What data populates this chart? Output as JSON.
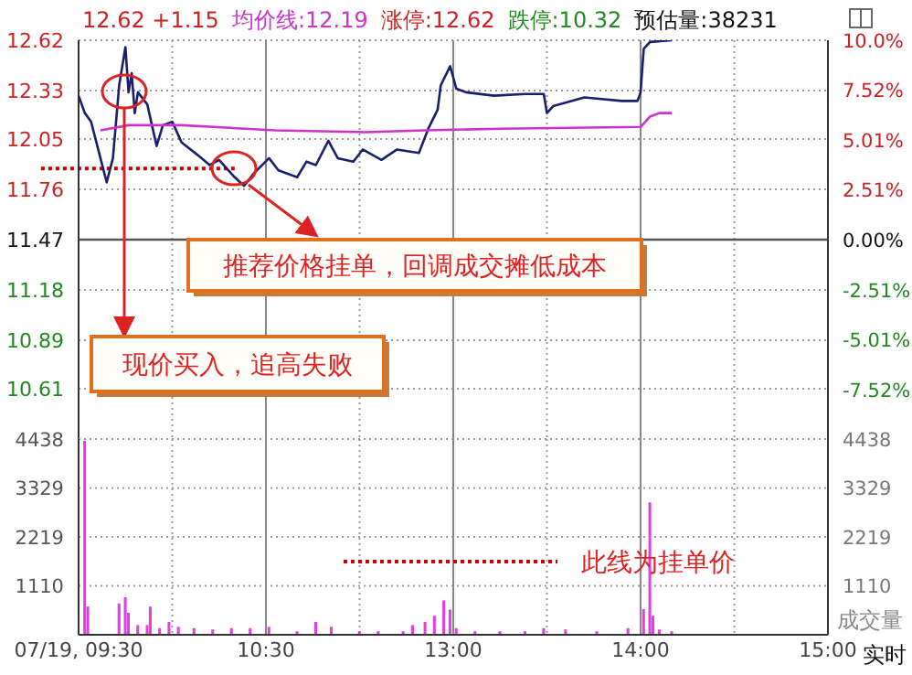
{
  "chart_data": [
    {
      "type": "line",
      "annotations": [
        "12.62 +1.15",
        "均价线:12.19",
        "涨停:12.62",
        "跌停:10.32",
        "预估量:38231",
        "现价买入，追高失败",
        "推荐价格挂单，回调成交摊低成本"
      ],
      "categories": [
        null,
        null,
        null,
        null,
        null,
        null,
        null,
        null,
        null,
        null,
        null,
        null,
        null,
        null,
        null,
        null,
        null,
        null,
        null,
        null,
        null,
        null,
        null,
        null,
        null,
        null,
        null,
        null,
        null,
        null,
        null,
        null,
        null,
        null,
        null,
        null,
        null,
        null,
        null,
        null,
        null,
        null,
        null,
        null,
        null,
        null,
        null,
        null,
        null,
        null,
        null,
        null,
        null,
        null,
        null,
        null,
        null,
        null,
        null,
        null,
        null,
        null,
        null,
        null,
        null,
        null,
        null,
        null,
        null,
        null,
        null,
        null,
        null,
        null,
        null,
        null,
        null,
        null,
        null,
        null,
        null,
        null,
        null,
        null,
        null,
        null,
        null,
        null,
        null,
        null,
        null,
        null,
        null,
        null,
        null,
        null,
        null,
        null,
        null,
        null,
        null,
        null,
        null,
        null,
        null,
        null,
        null,
        null,
        null,
        null,
        null,
        null,
        null,
        null,
        null,
        null,
        null,
        null,
        null,
        null,
        null,
        null,
        null,
        null,
        null,
        null,
        null,
        null,
        null,
        null,
        null,
        null,
        null,
        null,
        null,
        null,
        null,
        null,
        null,
        null,
        null,
        null,
        null,
        null,
        null,
        null,
        null,
        null,
        null,
        null,
        null,
        null,
        null,
        null,
        null,
        null,
        null,
        null,
        null,
        null,
        null,
        null,
        null,
        null,
        null,
        null,
        null,
        null,
        null,
        null,
        null,
        null,
        null,
        null,
        null,
        null,
        null,
        null,
        null,
        null,
        null,
        null,
        null,
        null,
        null,
        null,
        null,
        null,
        null,
        null,
        null,
        null,
        null,
        null,
        null,
        null,
        null,
        null,
        null,
        null,
        null,
        null,
        null,
        null,
        null,
        null,
        null,
        null,
        null,
        null,
        null,
        null,
        null,
        null,
        null,
        null,
        null,
        null,
        null,
        null,
        null,
        null,
        null,
        null,
        null,
        null,
        null,
        null,
        null,
        null,
        null,
        null,
        null,
        null,
        null,
        null,
        null,
        null,
        null,
        null,
        null
      ],
      "series": [
        {
          "color": "#1a1f6e",
          "values": [
            12.3,
            null,
            12.2,
            null,
            12.15,
            null,
            null,
            null,
            null,
            11.8,
            null,
            11.94,
            null,
            12.36,
            null,
            12.58,
            12.32,
            12.43,
            12.2,
            12.32,
            null,
            null,
            12.25,
            null,
            null,
            12.01,
            null,
            12.13,
            null,
            null,
            12.15,
            null,
            null,
            12.03,
            null,
            null,
            null,
            null,
            11.96,
            null,
            null,
            null,
            11.9,
            null,
            null,
            11.93,
            null,
            null,
            null,
            null,
            11.83,
            null,
            null,
            11.78,
            null,
            null,
            11.85,
            null,
            null,
            null,
            null,
            11.94,
            null,
            null,
            11.87,
            null,
            null,
            null,
            null,
            null,
            11.83,
            null,
            null,
            11.92,
            null,
            null,
            11.9,
            null,
            null,
            null,
            12.04,
            null,
            null,
            11.94,
            null,
            null,
            null,
            null,
            11.92,
            null,
            null,
            11.99,
            null,
            null,
            null,
            null,
            null,
            11.93,
            null,
            null,
            null,
            null,
            11.99,
            null,
            null,
            null,
            null,
            null,
            null,
            11.97,
            null,
            null,
            12.11,
            null,
            null,
            12.22,
            12.36,
            null,
            null,
            12.47,
            null,
            12.34,
            null,
            null,
            12.32,
            null,
            null,
            null,
            null,
            null,
            null,
            null,
            null,
            12.3,
            null,
            null,
            null,
            null,
            null,
            null,
            null,
            null,
            null,
            12.31,
            null,
            null,
            null,
            null,
            null,
            12.31,
            12.2,
            null,
            12.24,
            null,
            null,
            null,
            null,
            null,
            null,
            null,
            null,
            null,
            12.29,
            null,
            null,
            null,
            null,
            null,
            null,
            null,
            null,
            null,
            null,
            null,
            12.27,
            null,
            null,
            null,
            null,
            12.27,
            12.32,
            12.57,
            null,
            12.61,
            null,
            null,
            null,
            null,
            null,
            null,
            12.62,
            null,
            null,
            null,
            null,
            null,
            null,
            null,
            null,
            null,
            null,
            null,
            null,
            null,
            null,
            null,
            null,
            null,
            null,
            null,
            null,
            null,
            null,
            null,
            null,
            null,
            null,
            null,
            null,
            null,
            null,
            null,
            null,
            null,
            null,
            null,
            null,
            null,
            null,
            null,
            null,
            null,
            null,
            null,
            null,
            null,
            null,
            null,
            null,
            null,
            null
          ]
        },
        {
          "color": "#cc33cc",
          "values": [
            null,
            null,
            null,
            null,
            null,
            null,
            null,
            12.1,
            null,
            null,
            null,
            null,
            null,
            null,
            null,
            null,
            12.13,
            null,
            null,
            null,
            null,
            null,
            null,
            null,
            null,
            null,
            null,
            null,
            null,
            null,
            null,
            null,
            null,
            12.13,
            null,
            null,
            null,
            null,
            null,
            null,
            null,
            null,
            null,
            null,
            null,
            null,
            null,
            null,
            null,
            null,
            null,
            null,
            null,
            null,
            null,
            null,
            null,
            null,
            null,
            null,
            null,
            null,
            null,
            12.1,
            null,
            null,
            null,
            null,
            null,
            null,
            null,
            null,
            null,
            null,
            null,
            null,
            null,
            null,
            null,
            null,
            null,
            null,
            null,
            null,
            null,
            null,
            null,
            null,
            null,
            null,
            null,
            null,
            12.09,
            null,
            null,
            null,
            null,
            null,
            null,
            null,
            null,
            null,
            null,
            null,
            null,
            null,
            null,
            null,
            null,
            null,
            null,
            12.1,
            null,
            null,
            null,
            null,
            null,
            null,
            null,
            null,
            null,
            null,
            null,
            null,
            null,
            null,
            null,
            null,
            null,
            null,
            null,
            null,
            null,
            null,
            null,
            12.11,
            null,
            null,
            null,
            null,
            null,
            null,
            null,
            null,
            null,
            null,
            null,
            null,
            null,
            null,
            null,
            null,
            null,
            null,
            null,
            null,
            null,
            null,
            null,
            null,
            null,
            null,
            null,
            null,
            null,
            null,
            null,
            null,
            null,
            null,
            null,
            null,
            null,
            null,
            null,
            null,
            null,
            null,
            null,
            null,
            12.12,
            null,
            null,
            12.18,
            null,
            null,
            12.2,
            null,
            null,
            null,
            12.2,
            null,
            null,
            null,
            null,
            null,
            null,
            null,
            null,
            null,
            null,
            null,
            null,
            null,
            null,
            null,
            null,
            null,
            null,
            null,
            null,
            null,
            null,
            null,
            null,
            null,
            null,
            null,
            null,
            null,
            null,
            null,
            null,
            null,
            null,
            null,
            null,
            null,
            null,
            null,
            null,
            null,
            null,
            null,
            null,
            null,
            null,
            null,
            null,
            null,
            null
          ]
        }
      ],
      "ylim": [
        10.32,
        12.62
      ],
      "yticks": [
        12.62,
        12.33,
        12.05,
        11.76,
        11.47,
        11.18,
        10.89,
        10.61
      ],
      "y2lim": [
        -10,
        10
      ],
      "y2ticks": [
        {
          "value": 10,
          "label": "10.0%"
        },
        {
          "value": 7.52,
          "label": "7.52%"
        },
        {
          "value": 5.01,
          "label": "5.01%"
        },
        {
          "value": 2.51,
          "label": "2.51%"
        },
        {
          "value": 0,
          "label": "0.00%"
        },
        {
          "value": -2.51,
          "label": "-2.51%"
        },
        {
          "value": -5.01,
          "label": "-5.01%"
        },
        {
          "value": -7.52,
          "label": "-7.52%"
        }
      ],
      "ref_lines": [
        {
          "axis": "y",
          "value": 11.47,
          "color": "#555555",
          "line_style": "solid"
        },
        {
          "axis": "y",
          "value": 11.88,
          "color": "#cc0000",
          "line_style": "dotted"
        }
      ],
      "grid": true,
      "line_style": "solid",
      "tick_labels": "y"
    },
    {
      "type": "bar",
      "color": "#e040e0",
      "annotations": [
        "此线为挂单价",
        "实时"
      ],
      "y2label": "成交量",
      "categories": [
        "07/19, 09:30",
        null,
        null,
        null,
        null,
        null,
        null,
        null,
        null,
        null,
        null,
        null,
        null,
        null,
        null,
        null,
        null,
        null,
        null,
        null,
        null,
        null,
        null,
        null,
        null,
        null,
        null,
        null,
        null,
        null,
        null,
        null,
        null,
        null,
        null,
        null,
        null,
        null,
        null,
        null,
        null,
        null,
        null,
        null,
        null,
        null,
        null,
        null,
        null,
        null,
        null,
        null,
        null,
        null,
        null,
        null,
        null,
        null,
        null,
        null,
        "10:30",
        null,
        null,
        null,
        null,
        null,
        null,
        null,
        null,
        null,
        null,
        null,
        null,
        null,
        null,
        null,
        null,
        null,
        null,
        null,
        null,
        null,
        null,
        null,
        null,
        null,
        null,
        null,
        null,
        null,
        null,
        null,
        null,
        null,
        null,
        null,
        null,
        null,
        null,
        null,
        null,
        null,
        null,
        null,
        null,
        null,
        null,
        null,
        null,
        null,
        null,
        null,
        null,
        null,
        null,
        null,
        null,
        null,
        null,
        null,
        "13:00",
        null,
        null,
        null,
        null,
        null,
        null,
        null,
        null,
        null,
        null,
        null,
        null,
        null,
        null,
        null,
        null,
        null,
        null,
        null,
        null,
        null,
        null,
        null,
        null,
        null,
        null,
        null,
        null,
        null,
        null,
        null,
        null,
        null,
        null,
        null,
        null,
        null,
        null,
        null,
        null,
        null,
        null,
        null,
        null,
        null,
        null,
        null,
        null,
        null,
        null,
        null,
        null,
        null,
        null,
        null,
        null,
        null,
        null,
        null,
        "14:00",
        null,
        null,
        null,
        null,
        null,
        null,
        null,
        null,
        null,
        null,
        null,
        null,
        null,
        null,
        null,
        null,
        null,
        null,
        null,
        null,
        null,
        null,
        null,
        null,
        null,
        null,
        null,
        null,
        null,
        null,
        null,
        null,
        null,
        null,
        null,
        null,
        null,
        null,
        null,
        null,
        null,
        null,
        null,
        null,
        null,
        null,
        null,
        null,
        null,
        null,
        null,
        null,
        null,
        null,
        null,
        null,
        null,
        null,
        null,
        "15:00"
      ],
      "values": [
        null,
        null,
        4400,
        640,
        null,
        null,
        null,
        null,
        null,
        null,
        null,
        null,
        null,
        710,
        null,
        850,
        500,
        null,
        null,
        220,
        null,
        null,
        220,
        640,
        null,
        null,
        150,
        null,
        null,
        290,
        null,
        null,
        180,
        null,
        null,
        null,
        null,
        150,
        null,
        null,
        null,
        null,
        null,
        120,
        null,
        null,
        null,
        null,
        null,
        150,
        null,
        null,
        null,
        null,
        null,
        150,
        null,
        null,
        null,
        null,
        null,
        180,
        null,
        null,
        null,
        null,
        null,
        null,
        null,
        null,
        80,
        null,
        null,
        null,
        null,
        null,
        290,
        null,
        null,
        null,
        null,
        180,
        null,
        null,
        null,
        null,
        null,
        null,
        null,
        null,
        80,
        null,
        null,
        null,
        null,
        null,
        80,
        null,
        null,
        null,
        null,
        null,
        null,
        null,
        80,
        null,
        null,
        220,
        null,
        null,
        null,
        290,
        null,
        null,
        430,
        null,
        null,
        780,
        null,
        570,
        null,
        150,
        null,
        null,
        null,
        null,
        null,
        80,
        null,
        null,
        null,
        null,
        null,
        null,
        null,
        80,
        null,
        null,
        null,
        null,
        null,
        null,
        null,
        80,
        null,
        null,
        null,
        null,
        null,
        150,
        null,
        null,
        null,
        null,
        null,
        null,
        120,
        null,
        null,
        null,
        null,
        null,
        null,
        null,
        null,
        null,
        80,
        null,
        null,
        null,
        null,
        null,
        null,
        null,
        null,
        null,
        150,
        null,
        null,
        null,
        null,
        580,
        null,
        3000,
        430,
        null,
        120,
        null,
        null,
        null,
        80,
        null,
        null,
        null,
        null,
        null,
        null,
        null,
        null,
        null,
        null,
        null,
        null,
        null,
        null,
        null,
        null,
        null,
        null,
        null,
        null,
        null,
        null,
        null,
        null,
        null,
        null,
        null,
        null,
        null,
        null,
        null,
        null,
        null,
        null,
        null,
        null,
        null,
        null,
        null,
        null,
        null,
        null,
        null,
        null,
        null,
        null,
        null,
        null,
        null,
        null
      ],
      "ylim": [
        0,
        4438
      ],
      "yticks": [
        4438,
        3329,
        2219,
        1110
      ],
      "y2lim": [
        0,
        4438
      ],
      "y2ticks": [
        4438,
        3329,
        2219,
        1110
      ],
      "grid": true
    }
  ]
}
